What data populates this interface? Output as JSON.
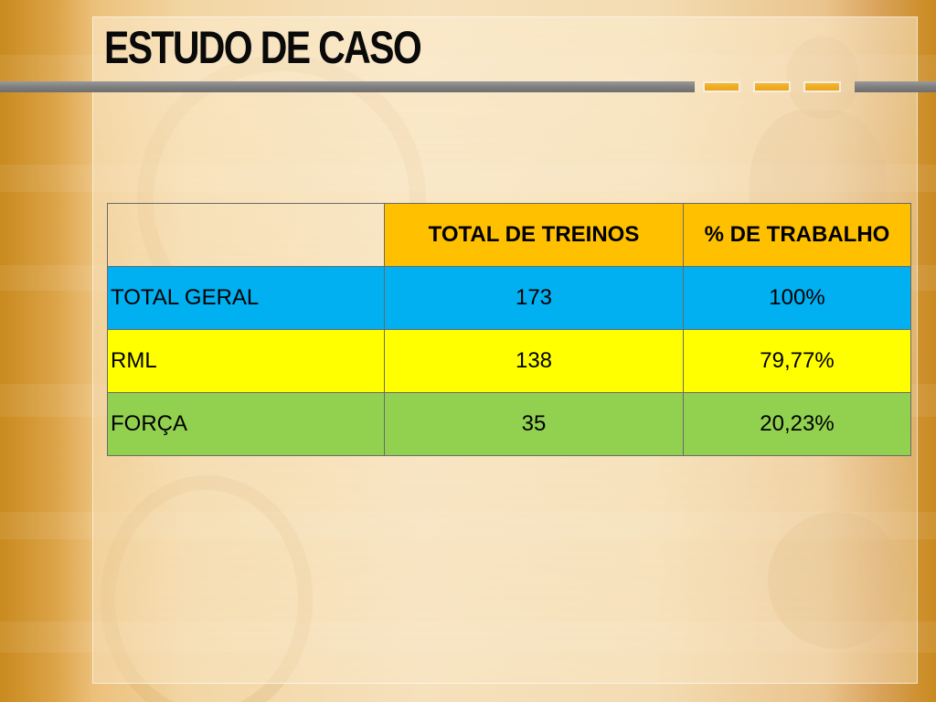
{
  "slide": {
    "title": "ESTUDO DE CASO"
  },
  "table": {
    "headers": [
      "",
      "TOTAL DE TREINOS",
      "% DE TRABALHO"
    ],
    "rows": [
      {
        "label": "TOTAL GERAL",
        "total": "173",
        "percent": "100%",
        "color": "#00b0f0"
      },
      {
        "label": "RML",
        "total": "138",
        "percent": "79,77%",
        "color": "#ffff00"
      },
      {
        "label": "FORÇA",
        "total": "35",
        "percent": "20,23%",
        "color": "#92d050"
      }
    ],
    "header_color": "#ffc000"
  },
  "theme": {
    "accent": "#f0ad1c",
    "bar_gray": "#808080",
    "title_color": "#0a0a0a"
  }
}
